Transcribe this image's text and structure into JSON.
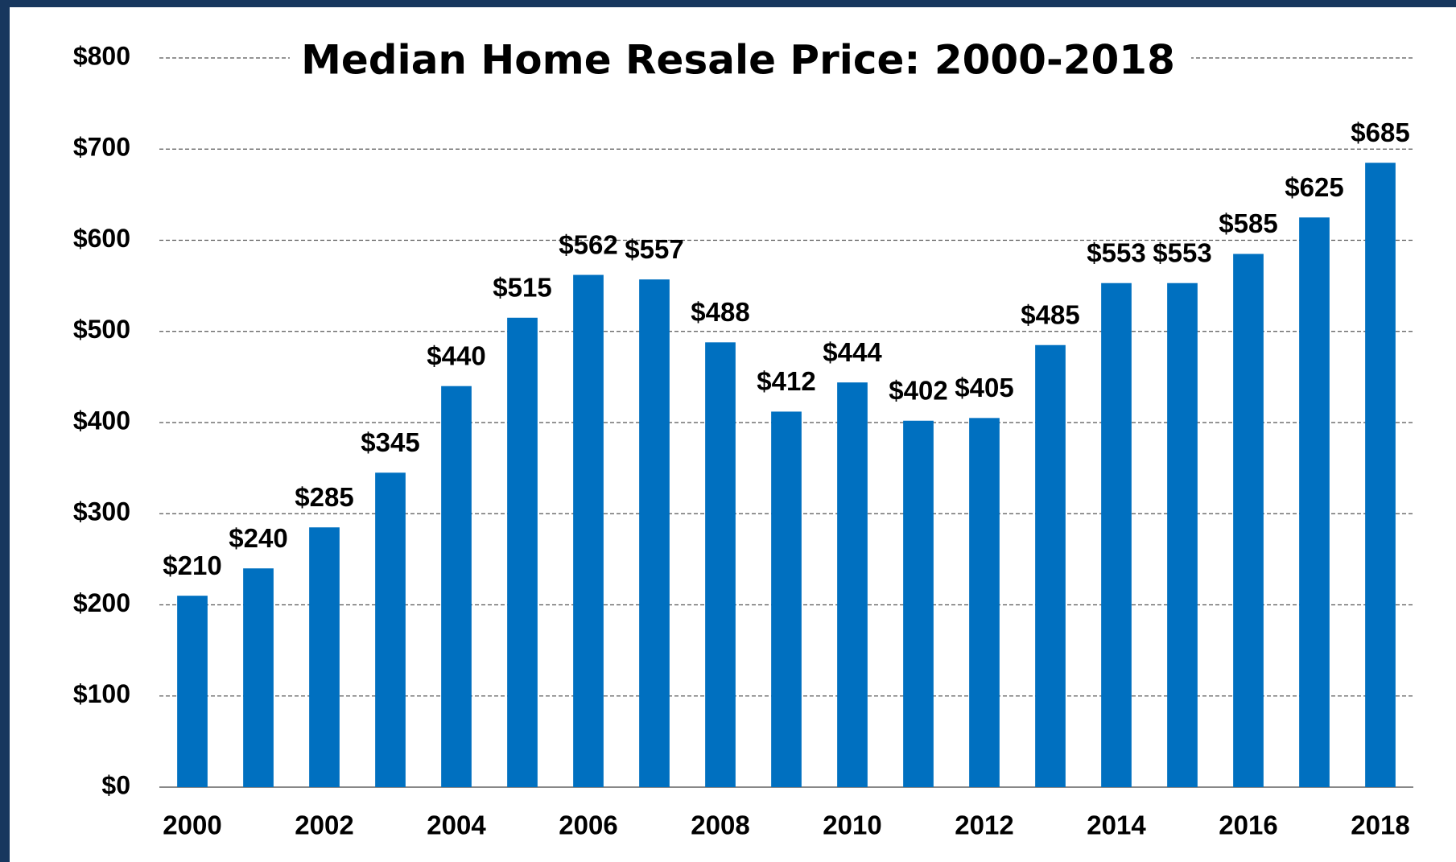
{
  "chart_data": {
    "type": "bar",
    "title": "Median Home Resale Price: 2000-2018",
    "categories": [
      "2000",
      null,
      "2002",
      null,
      "2004",
      null,
      "2006",
      null,
      "2008",
      null,
      "2010",
      null,
      "2012",
      null,
      "2014",
      null,
      "2016",
      null,
      "2018"
    ],
    "values": [
      210,
      240,
      285,
      345,
      440,
      515,
      562,
      557,
      488,
      412,
      444,
      402,
      405,
      485,
      553,
      553,
      585,
      625,
      685
    ],
    "value_labels": [
      "$210",
      "$240",
      "$285",
      "$345",
      "$440",
      "$515",
      "$562",
      "$557",
      "$488",
      "$412",
      "$444",
      "$402",
      "$405",
      "$485",
      "$553",
      "$553",
      "$585",
      "$625",
      "$685"
    ],
    "color": "#0070c0",
    "ylim": [
      0,
      800
    ],
    "yticks": [
      {
        "value": 0,
        "label": "$0"
      },
      {
        "value": 100,
        "label": "$100"
      },
      {
        "value": 200,
        "label": "$200"
      },
      {
        "value": 300,
        "label": "$300"
      },
      {
        "value": 400,
        "label": "$400"
      },
      {
        "value": 500,
        "label": "$500"
      },
      {
        "value": 600,
        "label": "$600"
      },
      {
        "value": 700,
        "label": "$700"
      },
      {
        "value": 800,
        "label": "$800"
      }
    ],
    "grid": true
  }
}
